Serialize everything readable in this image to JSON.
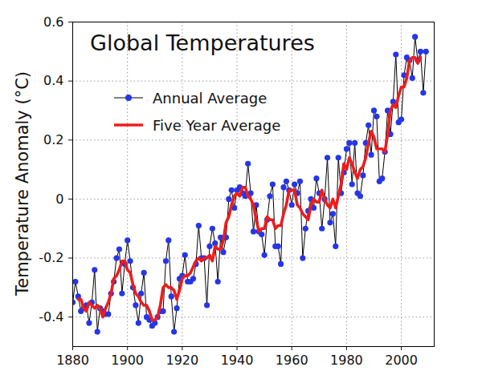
{
  "chart_data": {
    "type": "line",
    "title": "Global Temperatures",
    "y_label": "Temperature Anomaly (°C)",
    "x": [
      1880,
      1881,
      1882,
      1883,
      1884,
      1885,
      1886,
      1887,
      1888,
      1889,
      1890,
      1891,
      1892,
      1893,
      1894,
      1895,
      1896,
      1897,
      1898,
      1899,
      1900,
      1901,
      1902,
      1903,
      1904,
      1905,
      1906,
      1907,
      1908,
      1909,
      1910,
      1911,
      1912,
      1913,
      1914,
      1915,
      1916,
      1917,
      1918,
      1919,
      1920,
      1921,
      1922,
      1923,
      1924,
      1925,
      1926,
      1927,
      1928,
      1929,
      1930,
      1931,
      1932,
      1933,
      1934,
      1935,
      1936,
      1937,
      1938,
      1939,
      1940,
      1941,
      1942,
      1943,
      1944,
      1945,
      1946,
      1947,
      1948,
      1949,
      1950,
      1951,
      1952,
      1953,
      1954,
      1955,
      1956,
      1957,
      1958,
      1959,
      1960,
      1961,
      1962,
      1963,
      1964,
      1965,
      1966,
      1967,
      1968,
      1969,
      1970,
      1971,
      1972,
      1973,
      1974,
      1975,
      1976,
      1977,
      1978,
      1979,
      1980,
      1981,
      1982,
      1983,
      1984,
      1985,
      1986,
      1987,
      1988,
      1989,
      1990,
      1991,
      1992,
      1993,
      1994,
      1995,
      1996,
      1997,
      1998,
      1999,
      2000,
      2001,
      2002,
      2003,
      2004,
      2005,
      2006,
      2007,
      2008,
      2009
    ],
    "series": [
      {
        "name": "Annual Average",
        "color": "#2536e8",
        "marker": "circle",
        "line_style": "solid",
        "values": [
          -0.35,
          -0.28,
          -0.33,
          -0.38,
          -0.37,
          -0.36,
          -0.42,
          -0.35,
          -0.24,
          -0.45,
          -0.37,
          -0.38,
          -0.39,
          -0.39,
          -0.32,
          -0.28,
          -0.2,
          -0.17,
          -0.32,
          -0.22,
          -0.14,
          -0.21,
          -0.3,
          -0.36,
          -0.42,
          -0.32,
          -0.25,
          -0.4,
          -0.41,
          -0.43,
          -0.42,
          -0.4,
          -0.38,
          -0.38,
          -0.21,
          -0.14,
          -0.33,
          -0.45,
          -0.37,
          -0.27,
          -0.26,
          -0.19,
          -0.28,
          -0.28,
          -0.27,
          -0.22,
          -0.09,
          -0.2,
          -0.2,
          -0.36,
          -0.16,
          -0.1,
          -0.15,
          -0.28,
          -0.13,
          -0.18,
          -0.13,
          0.0,
          0.03,
          -0.03,
          0.03,
          0.04,
          0.02,
          0.01,
          0.12,
          0.02,
          -0.11,
          -0.02,
          -0.11,
          -0.12,
          -0.19,
          -0.07,
          0.01,
          0.05,
          -0.16,
          -0.16,
          -0.22,
          0.04,
          0.06,
          0.03,
          -0.02,
          0.05,
          0.02,
          0.06,
          -0.2,
          -0.1,
          -0.04,
          0.0,
          -0.03,
          0.07,
          0.02,
          -0.1,
          0.0,
          0.14,
          -0.08,
          -0.05,
          -0.16,
          0.14,
          0.02,
          0.09,
          0.17,
          0.19,
          0.05,
          0.19,
          0.02,
          0.01,
          0.08,
          0.19,
          0.25,
          0.15,
          0.3,
          0.28,
          0.06,
          0.07,
          0.16,
          0.3,
          0.22,
          0.33,
          0.49,
          0.26,
          0.27,
          0.42,
          0.48,
          0.47,
          0.41,
          0.55,
          0.47,
          0.5,
          0.36,
          0.5
        ]
      },
      {
        "name": "Five Year Average",
        "color": "#ee1c1c",
        "marker": "none",
        "line_style": "solid",
        "values": [
          null,
          null,
          -0.34,
          -0.34,
          -0.37,
          -0.38,
          -0.35,
          -0.36,
          -0.37,
          -0.36,
          -0.37,
          -0.4,
          -0.37,
          -0.35,
          -0.32,
          -0.27,
          -0.26,
          -0.24,
          -0.21,
          -0.21,
          -0.24,
          -0.25,
          -0.29,
          -0.32,
          -0.33,
          -0.35,
          -0.36,
          -0.36,
          -0.38,
          -0.41,
          -0.41,
          -0.4,
          -0.36,
          -0.3,
          -0.29,
          -0.3,
          -0.3,
          -0.31,
          -0.34,
          -0.31,
          -0.27,
          -0.26,
          -0.26,
          -0.25,
          -0.23,
          -0.21,
          -0.2,
          -0.21,
          -0.2,
          -0.2,
          -0.19,
          -0.21,
          -0.16,
          -0.17,
          -0.17,
          -0.14,
          -0.08,
          -0.06,
          -0.02,
          0.01,
          0.02,
          0.01,
          0.04,
          0.04,
          0.01,
          0.0,
          -0.02,
          -0.07,
          -0.11,
          -0.1,
          -0.1,
          -0.06,
          -0.07,
          -0.07,
          -0.1,
          -0.09,
          -0.09,
          -0.05,
          -0.02,
          0.03,
          0.03,
          0.03,
          -0.02,
          -0.03,
          -0.05,
          -0.06,
          -0.07,
          -0.02,
          0.0,
          -0.01,
          -0.01,
          0.03,
          0.0,
          -0.02,
          -0.03,
          0.0,
          -0.03,
          0.01,
          0.05,
          0.12,
          0.1,
          0.14,
          0.12,
          0.09,
          0.07,
          0.1,
          0.11,
          0.14,
          0.19,
          0.23,
          0.21,
          0.17,
          0.17,
          0.17,
          0.16,
          0.22,
          0.3,
          0.32,
          0.31,
          0.35,
          0.38,
          0.38,
          0.41,
          0.47,
          0.48,
          0.48,
          0.46,
          0.48,
          null,
          null
        ]
      }
    ],
    "xlim": [
      1880,
      2012
    ],
    "xticks": [
      1880,
      1900,
      1920,
      1940,
      1960,
      1980,
      2000
    ],
    "ylim": [
      -0.5,
      0.6
    ],
    "yticks": [
      -0.4,
      -0.2,
      0,
      0.2,
      0.4,
      0.6
    ],
    "grid": true,
    "legend": "upper left"
  }
}
